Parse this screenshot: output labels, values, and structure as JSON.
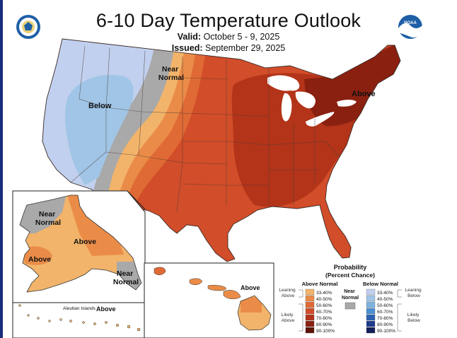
{
  "header": {
    "title": "6-10 Day Temperature Outlook",
    "valid_label": "Valid:",
    "valid_value": "October 5 - 9, 2025",
    "issued_label": "Issued:",
    "issued_value": "September 29, 2025",
    "left_logo_icon": "doc-seal-icon",
    "right_logo_icon": "noaa-logo-icon",
    "noaa_text": "NOAA"
  },
  "map_labels": {
    "conus_below": "Below",
    "conus_near": "Near\nNormal",
    "conus_above": "Above",
    "alaska_near": "Near\nNormal",
    "alaska_above_1": "Above",
    "alaska_above_2": "Above",
    "alaska_near_2": "Near\nNormal",
    "hawaii_above": "Above",
    "aleutian_title": "Aleutian Islands",
    "aleutian_above": "Above"
  },
  "legend": {
    "title_1": "Probability",
    "title_2": "(Percent Chance)",
    "above_header": "Above Normal",
    "below_header": "Below Normal",
    "near_header": "Near\nNormal",
    "leaning_above": "Leaning\nAbove",
    "likely_above": "Likely\nAbove",
    "leaning_below": "Leaning\nBelow",
    "likely_below": "Likely\nBelow",
    "above_bins": [
      {
        "label": "33-40%",
        "color": "#f2b46a"
      },
      {
        "label": "40-50%",
        "color": "#ea8c48"
      },
      {
        "label": "50-60%",
        "color": "#e06a35"
      },
      {
        "label": "60-70%",
        "color": "#d24d29"
      },
      {
        "label": "70-80%",
        "color": "#b33419"
      },
      {
        "label": "80-90%",
        "color": "#8a2010"
      },
      {
        "label": "90-100%",
        "color": "#5e1206"
      }
    ],
    "below_bins": [
      {
        "label": "33-40%",
        "color": "#c1d0ee"
      },
      {
        "label": "40-50%",
        "color": "#a0c5e6"
      },
      {
        "label": "50-60%",
        "color": "#7db3e0"
      },
      {
        "label": "60-70%",
        "color": "#4a8fd0"
      },
      {
        "label": "70-80%",
        "color": "#2a63b0"
      },
      {
        "label": "80-90%",
        "color": "#1e3c8c"
      },
      {
        "label": "90-100%",
        "color": "#141e5a"
      }
    ],
    "near_color": "#a9a9a9"
  }
}
